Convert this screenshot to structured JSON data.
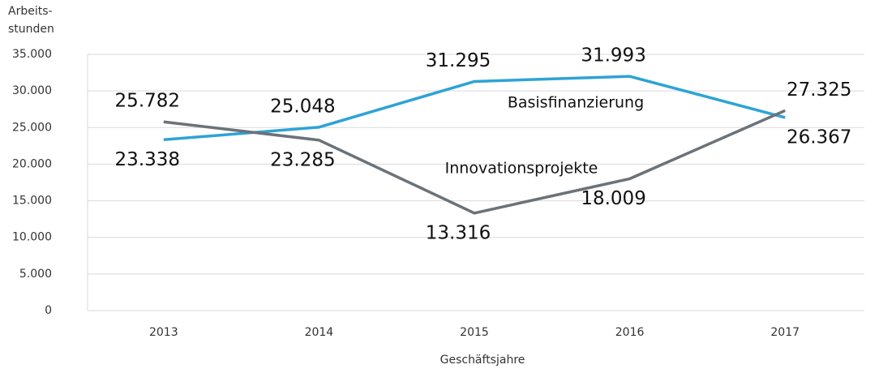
{
  "chart_data": {
    "type": "line",
    "ylabel": [
      "Arbeits-",
      "stunden"
    ],
    "xlabel": "Geschäftsjahre",
    "categories": [
      "2013",
      "2014",
      "2015",
      "2016",
      "2017"
    ],
    "series": [
      {
        "name": "Basisfinanzierung",
        "color": "#2ea3d5",
        "values": [
          23338,
          25048,
          31295,
          31993,
          26367
        ],
        "value_labels": [
          "23.338",
          "25.048",
          "31.295",
          "31.993",
          "26.367"
        ]
      },
      {
        "name": "Innovationsprojekte",
        "color": "#6b7278",
        "values": [
          25782,
          23285,
          13316,
          18009,
          27325
        ],
        "value_labels": [
          "25.782",
          "23.285",
          "13.316",
          "18.009",
          "27.325"
        ]
      }
    ],
    "ylim": [
      0,
      35000
    ],
    "yticks": [
      {
        "value": 0,
        "label": "0"
      },
      {
        "value": 5000,
        "label": "5.000"
      },
      {
        "value": 10000,
        "label": "10.000"
      },
      {
        "value": 15000,
        "label": "15.000"
      },
      {
        "value": 20000,
        "label": "20.000"
      },
      {
        "value": 25000,
        "label": "25.000"
      },
      {
        "value": 30000,
        "label": "30.000"
      },
      {
        "value": 35000,
        "label": "35.000"
      }
    ],
    "grid": true
  }
}
